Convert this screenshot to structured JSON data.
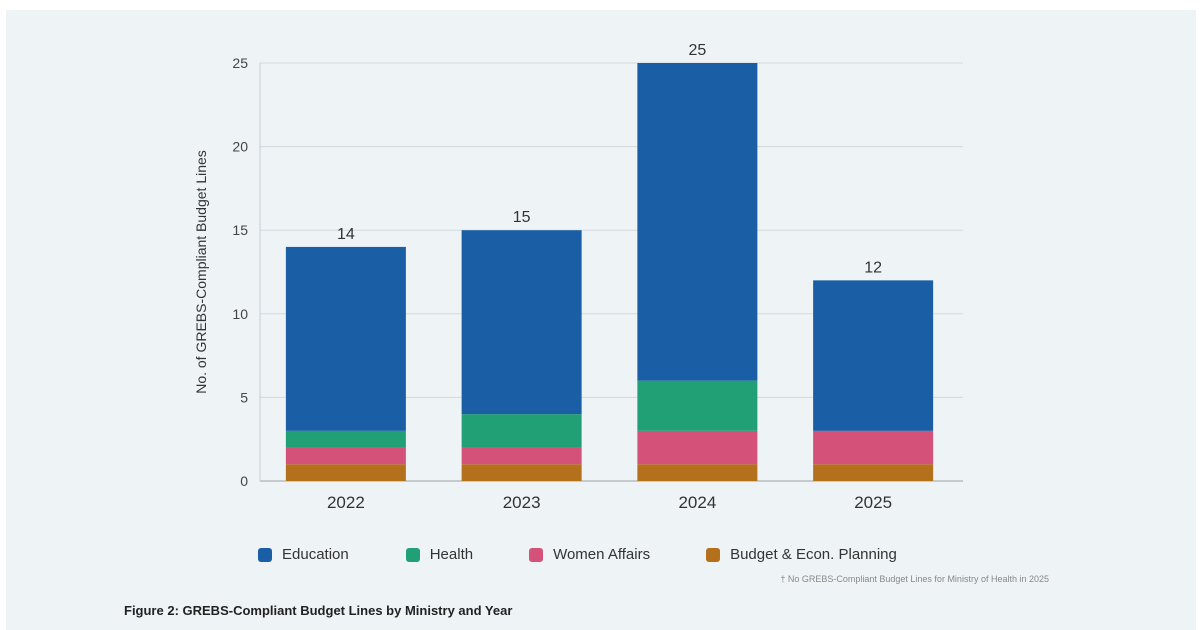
{
  "chart_data": {
    "type": "bar",
    "stacked": true,
    "categories": [
      "2022",
      "2023",
      "2024",
      "2025"
    ],
    "series": [
      {
        "name": "Budget & Econ. Planning",
        "color": "#b5701c",
        "values": [
          1,
          1,
          1,
          1
        ]
      },
      {
        "name": "Women Affairs",
        "color": "#d4527a",
        "values": [
          1,
          1,
          2,
          2
        ]
      },
      {
        "name": "Health",
        "color": "#21a076",
        "values": [
          1,
          2,
          3,
          0
        ]
      },
      {
        "name": "Education",
        "color": "#1a5ea5",
        "values": [
          11,
          11,
          19,
          9
        ]
      }
    ],
    "totals": [
      "14",
      "15",
      "25",
      "12"
    ],
    "ylabel": "No. of GREBS-Compliant Budget Lines",
    "ylim": [
      0,
      25
    ],
    "yticks": [
      "0",
      "5",
      "10",
      "15",
      "20",
      "25"
    ],
    "grid": true,
    "legend_placement": "bottom",
    "legend_order": [
      "Education",
      "Health",
      "Women Affairs",
      "Budget & Econ. Planning"
    ]
  },
  "footnote": "† No GREBS-Compliant Budget Lines for Ministry of Health in 2025",
  "caption": "Figure 2: GREBS-Compliant Budget Lines by Ministry and Year"
}
